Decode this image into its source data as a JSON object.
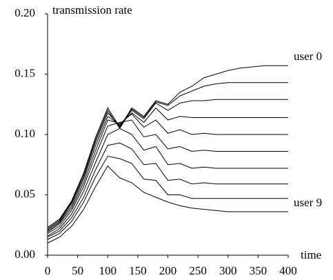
{
  "chart_data": {
    "type": "line",
    "y_label": "transmission rate",
    "x_label": "time",
    "x": [
      0,
      20,
      40,
      60,
      80,
      100,
      120,
      140,
      160,
      180,
      200,
      220,
      240,
      260,
      280,
      300,
      320,
      340,
      360,
      380,
      400
    ],
    "xlim": [
      0,
      400
    ],
    "xticks": [
      0,
      50,
      100,
      150,
      200,
      250,
      300,
      350,
      400
    ],
    "ylim": [
      0,
      0.2
    ],
    "yticks": [
      {
        "value": 0,
        "label": "0.00"
      },
      0.05,
      {
        "value": 0.1,
        "label": "0.10"
      },
      0.15,
      {
        "value": 0.2,
        "label": "0.20"
      }
    ],
    "series": [
      {
        "name": "user 0",
        "color": "#000000",
        "values": [
          0.023,
          0.03,
          0.045,
          0.068,
          0.098,
          0.122,
          0.106,
          0.122,
          0.115,
          0.128,
          0.125,
          0.135,
          0.14,
          0.147,
          0.15,
          0.153,
          0.155,
          0.156,
          0.157,
          0.157,
          0.157
        ]
      },
      {
        "color": "#000000",
        "values": [
          0.022,
          0.029,
          0.044,
          0.067,
          0.096,
          0.12,
          0.105,
          0.121,
          0.114,
          0.127,
          0.124,
          0.132,
          0.136,
          0.14,
          0.142,
          0.143,
          0.143,
          0.143,
          0.143,
          0.143,
          0.143
        ]
      },
      {
        "color": "#000000",
        "values": [
          0.021,
          0.028,
          0.043,
          0.065,
          0.094,
          0.118,
          0.107,
          0.12,
          0.113,
          0.126,
          0.12,
          0.126,
          0.128,
          0.128,
          0.129,
          0.129,
          0.129,
          0.129,
          0.129,
          0.129,
          0.129
        ]
      },
      {
        "color": "#000000",
        "values": [
          0.02,
          0.027,
          0.041,
          0.063,
          0.091,
          0.115,
          0.108,
          0.118,
          0.11,
          0.122,
          0.112,
          0.115,
          0.114,
          0.114,
          0.114,
          0.114,
          0.114,
          0.114,
          0.114,
          0.114,
          0.114
        ]
      },
      {
        "color": "#000000",
        "values": [
          0.019,
          0.026,
          0.039,
          0.06,
          0.087,
          0.112,
          0.109,
          0.117,
          0.106,
          0.112,
          0.101,
          0.104,
          0.1,
          0.101,
          0.1,
          0.1,
          0.1,
          0.1,
          0.1,
          0.1,
          0.1
        ]
      },
      {
        "color": "#000000",
        "values": [
          0.018,
          0.024,
          0.037,
          0.057,
          0.083,
          0.107,
          0.11,
          0.112,
          0.098,
          0.1,
          0.088,
          0.09,
          0.086,
          0.087,
          0.086,
          0.086,
          0.086,
          0.086,
          0.086,
          0.086,
          0.086
        ]
      },
      {
        "color": "#000000",
        "values": [
          0.016,
          0.022,
          0.034,
          0.053,
          0.077,
          0.1,
          0.105,
          0.1,
          0.087,
          0.09,
          0.075,
          0.076,
          0.072,
          0.073,
          0.072,
          0.072,
          0.072,
          0.072,
          0.072,
          0.072,
          0.072
        ]
      },
      {
        "color": "#000000",
        "values": [
          0.015,
          0.02,
          0.031,
          0.048,
          0.071,
          0.091,
          0.093,
          0.088,
          0.075,
          0.076,
          0.062,
          0.063,
          0.059,
          0.06,
          0.059,
          0.059,
          0.059,
          0.059,
          0.059,
          0.059,
          0.059
        ]
      },
      {
        "color": "#000000",
        "values": [
          0.013,
          0.018,
          0.028,
          0.044,
          0.065,
          0.082,
          0.08,
          0.076,
          0.063,
          0.062,
          0.05,
          0.05,
          0.047,
          0.047,
          0.047,
          0.047,
          0.047,
          0.047,
          0.047,
          0.047,
          0.047
        ]
      },
      {
        "name": "user 9",
        "color": "#000000",
        "values": [
          0.01,
          0.015,
          0.024,
          0.038,
          0.057,
          0.074,
          0.064,
          0.06,
          0.052,
          0.048,
          0.044,
          0.041,
          0.039,
          0.038,
          0.037,
          0.036,
          0.036,
          0.036,
          0.036,
          0.036,
          0.036
        ]
      }
    ]
  }
}
